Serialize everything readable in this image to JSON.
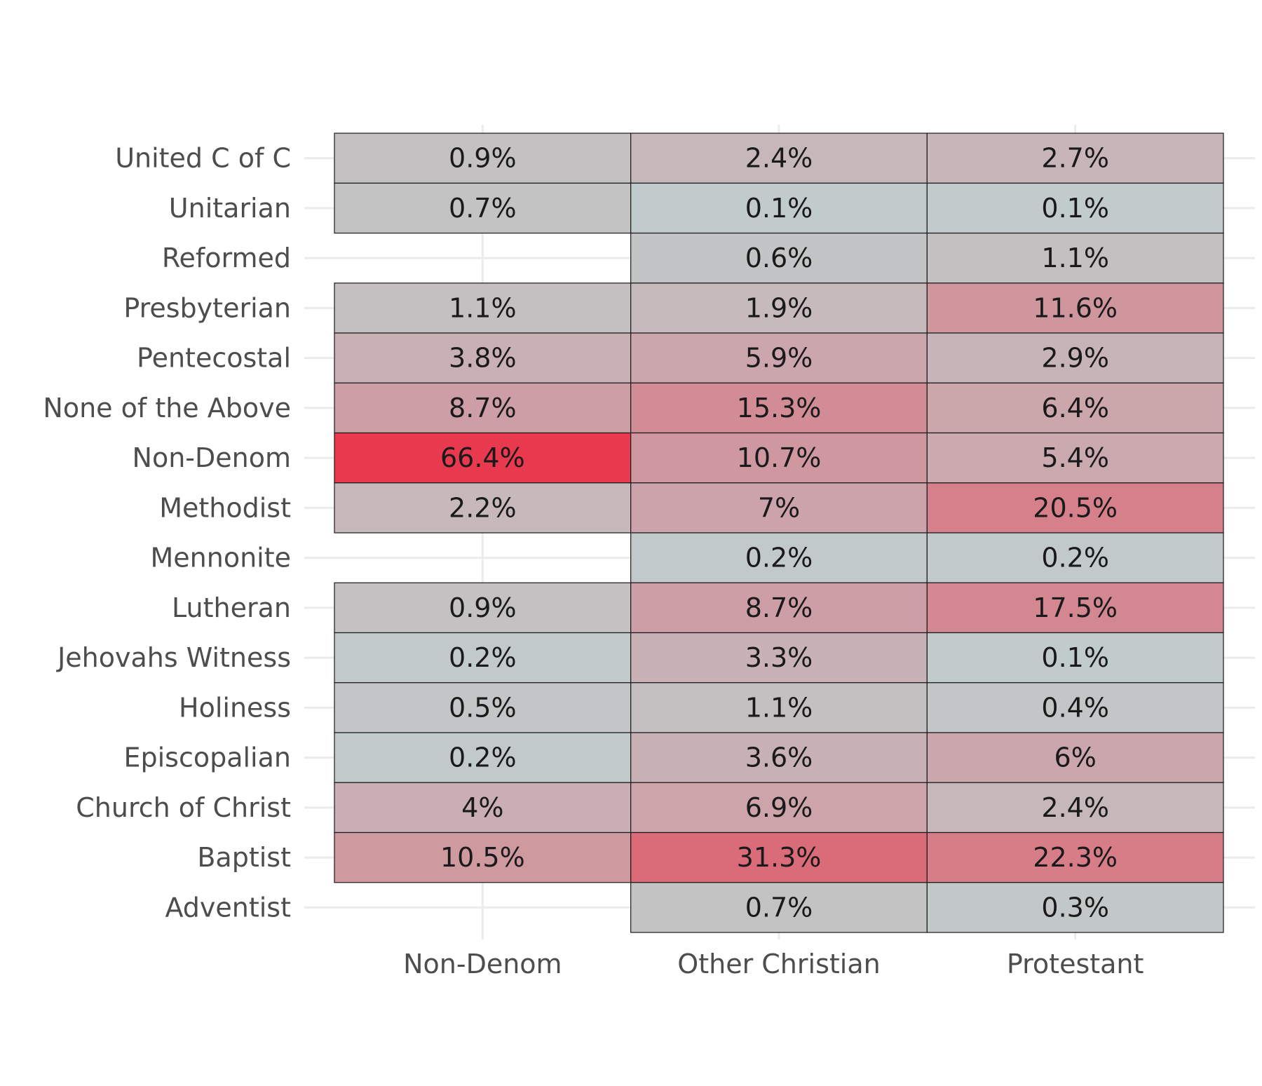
{
  "chart_data": {
    "type": "heatmap",
    "x_categories": [
      "Non-Denom",
      "Other Christian",
      "Protestant"
    ],
    "y_categories": [
      "United C of C",
      "Unitarian",
      "Reformed",
      "Presbyterian",
      "Pentecostal",
      "None of the Above",
      "Non-Denom",
      "Methodist",
      "Mennonite",
      "Lutheran",
      "Jehovahs Witness",
      "Holiness",
      "Episcopalian",
      "Church of Christ",
      "Baptist",
      "Adventist"
    ],
    "cells": [
      {
        "x": "Non-Denom",
        "y": "United C of C",
        "value": 0.9,
        "label": "0.9%"
      },
      {
        "x": "Other Christian",
        "y": "United C of C",
        "value": 2.4,
        "label": "2.4%"
      },
      {
        "x": "Protestant",
        "y": "United C of C",
        "value": 2.7,
        "label": "2.7%"
      },
      {
        "x": "Non-Denom",
        "y": "Unitarian",
        "value": 0.7,
        "label": "0.7%"
      },
      {
        "x": "Other Christian",
        "y": "Unitarian",
        "value": 0.1,
        "label": "0.1%"
      },
      {
        "x": "Protestant",
        "y": "Unitarian",
        "value": 0.1,
        "label": "0.1%"
      },
      {
        "x": "Other Christian",
        "y": "Reformed",
        "value": 0.6,
        "label": "0.6%"
      },
      {
        "x": "Protestant",
        "y": "Reformed",
        "value": 1.1,
        "label": "1.1%"
      },
      {
        "x": "Non-Denom",
        "y": "Presbyterian",
        "value": 1.1,
        "label": "1.1%"
      },
      {
        "x": "Other Christian",
        "y": "Presbyterian",
        "value": 1.9,
        "label": "1.9%"
      },
      {
        "x": "Protestant",
        "y": "Presbyterian",
        "value": 11.6,
        "label": "11.6%"
      },
      {
        "x": "Non-Denom",
        "y": "Pentecostal",
        "value": 3.8,
        "label": "3.8%"
      },
      {
        "x": "Other Christian",
        "y": "Pentecostal",
        "value": 5.9,
        "label": "5.9%"
      },
      {
        "x": "Protestant",
        "y": "Pentecostal",
        "value": 2.9,
        "label": "2.9%"
      },
      {
        "x": "Non-Denom",
        "y": "None of the Above",
        "value": 8.7,
        "label": "8.7%"
      },
      {
        "x": "Other Christian",
        "y": "None of the Above",
        "value": 15.3,
        "label": "15.3%"
      },
      {
        "x": "Protestant",
        "y": "None of the Above",
        "value": 6.4,
        "label": "6.4%"
      },
      {
        "x": "Non-Denom",
        "y": "Non-Denom",
        "value": 66.4,
        "label": "66.4%"
      },
      {
        "x": "Other Christian",
        "y": "Non-Denom",
        "value": 10.7,
        "label": "10.7%"
      },
      {
        "x": "Protestant",
        "y": "Non-Denom",
        "value": 5.4,
        "label": "5.4%"
      },
      {
        "x": "Non-Denom",
        "y": "Methodist",
        "value": 2.2,
        "label": "2.2%"
      },
      {
        "x": "Other Christian",
        "y": "Methodist",
        "value": 7,
        "label": "7%"
      },
      {
        "x": "Protestant",
        "y": "Methodist",
        "value": 20.5,
        "label": "20.5%"
      },
      {
        "x": "Other Christian",
        "y": "Mennonite",
        "value": 0.2,
        "label": "0.2%"
      },
      {
        "x": "Protestant",
        "y": "Mennonite",
        "value": 0.2,
        "label": "0.2%"
      },
      {
        "x": "Non-Denom",
        "y": "Lutheran",
        "value": 0.9,
        "label": "0.9%"
      },
      {
        "x": "Other Christian",
        "y": "Lutheran",
        "value": 8.7,
        "label": "8.7%"
      },
      {
        "x": "Protestant",
        "y": "Lutheran",
        "value": 17.5,
        "label": "17.5%"
      },
      {
        "x": "Non-Denom",
        "y": "Jehovahs Witness",
        "value": 0.2,
        "label": "0.2%"
      },
      {
        "x": "Other Christian",
        "y": "Jehovahs Witness",
        "value": 3.3,
        "label": "3.3%"
      },
      {
        "x": "Protestant",
        "y": "Jehovahs Witness",
        "value": 0.1,
        "label": "0.1%"
      },
      {
        "x": "Non-Denom",
        "y": "Holiness",
        "value": 0.5,
        "label": "0.5%"
      },
      {
        "x": "Other Christian",
        "y": "Holiness",
        "value": 1.1,
        "label": "1.1%"
      },
      {
        "x": "Protestant",
        "y": "Holiness",
        "value": 0.4,
        "label": "0.4%"
      },
      {
        "x": "Non-Denom",
        "y": "Episcopalian",
        "value": 0.2,
        "label": "0.2%"
      },
      {
        "x": "Other Christian",
        "y": "Episcopalian",
        "value": 3.6,
        "label": "3.6%"
      },
      {
        "x": "Protestant",
        "y": "Episcopalian",
        "value": 6,
        "label": "6%"
      },
      {
        "x": "Non-Denom",
        "y": "Church of Christ",
        "value": 4,
        "label": "4%"
      },
      {
        "x": "Other Christian",
        "y": "Church of Christ",
        "value": 6.9,
        "label": "6.9%"
      },
      {
        "x": "Protestant",
        "y": "Church of Christ",
        "value": 2.4,
        "label": "2.4%"
      },
      {
        "x": "Non-Denom",
        "y": "Baptist",
        "value": 10.5,
        "label": "10.5%"
      },
      {
        "x": "Other Christian",
        "y": "Baptist",
        "value": 31.3,
        "label": "31.3%"
      },
      {
        "x": "Protestant",
        "y": "Baptist",
        "value": 22.3,
        "label": "22.3%"
      },
      {
        "x": "Other Christian",
        "y": "Adventist",
        "value": 0.7,
        "label": "0.7%"
      },
      {
        "x": "Protestant",
        "y": "Adventist",
        "value": 0.3,
        "label": "0.3%"
      }
    ],
    "color_low": "#c0cfcf",
    "color_high": "#e8394e",
    "grid": true,
    "legend": "none",
    "title": "",
    "xlabel": "",
    "ylabel": ""
  }
}
